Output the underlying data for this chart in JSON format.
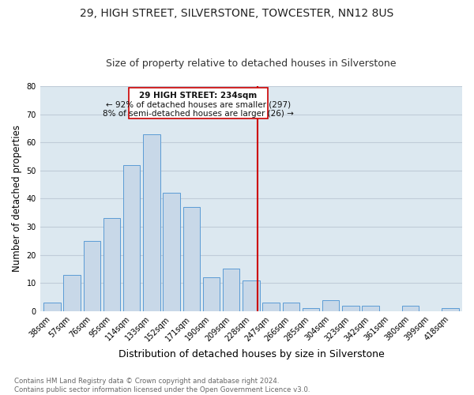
{
  "title": "29, HIGH STREET, SILVERSTONE, TOWCESTER, NN12 8US",
  "subtitle": "Size of property relative to detached houses in Silverstone",
  "xlabel": "Distribution of detached houses by size in Silverstone",
  "ylabel": "Number of detached properties",
  "footnote1": "Contains HM Land Registry data © Crown copyright and database right 2024.",
  "footnote2": "Contains public sector information licensed under the Open Government Licence v3.0.",
  "bar_labels": [
    "38sqm",
    "57sqm",
    "76sqm",
    "95sqm",
    "114sqm",
    "133sqm",
    "152sqm",
    "171sqm",
    "190sqm",
    "209sqm",
    "228sqm",
    "247sqm",
    "266sqm",
    "285sqm",
    "304sqm",
    "323sqm",
    "342sqm",
    "361sqm",
    "380sqm",
    "399sqm",
    "418sqm"
  ],
  "bar_values": [
    3,
    13,
    25,
    33,
    52,
    63,
    42,
    37,
    12,
    15,
    11,
    3,
    3,
    1,
    4,
    2,
    2,
    0,
    2,
    0,
    1
  ],
  "bar_color": "#c8d8e8",
  "bar_edge_color": "#5b9bd5",
  "annotation_text": "29 HIGH STREET: 234sqm",
  "annotation_line1": "← 92% of detached houses are smaller (297)",
  "annotation_line2": "8% of semi-detached houses are larger (26) →",
  "annotation_box_color": "#ffffff",
  "annotation_box_edge": "#cc0000",
  "vline_color": "#cc0000",
  "ylim": [
    0,
    80
  ],
  "yticks": [
    0,
    10,
    20,
    30,
    40,
    50,
    60,
    70,
    80
  ],
  "grid_color": "#c0ccd8",
  "bg_color": "#dce8f0",
  "title_fontsize": 10,
  "subtitle_fontsize": 9,
  "ylabel_fontsize": 8.5,
  "xlabel_fontsize": 9,
  "tick_fontsize": 7,
  "annot_fontsize": 7.5,
  "footnote_fontsize": 6.2
}
